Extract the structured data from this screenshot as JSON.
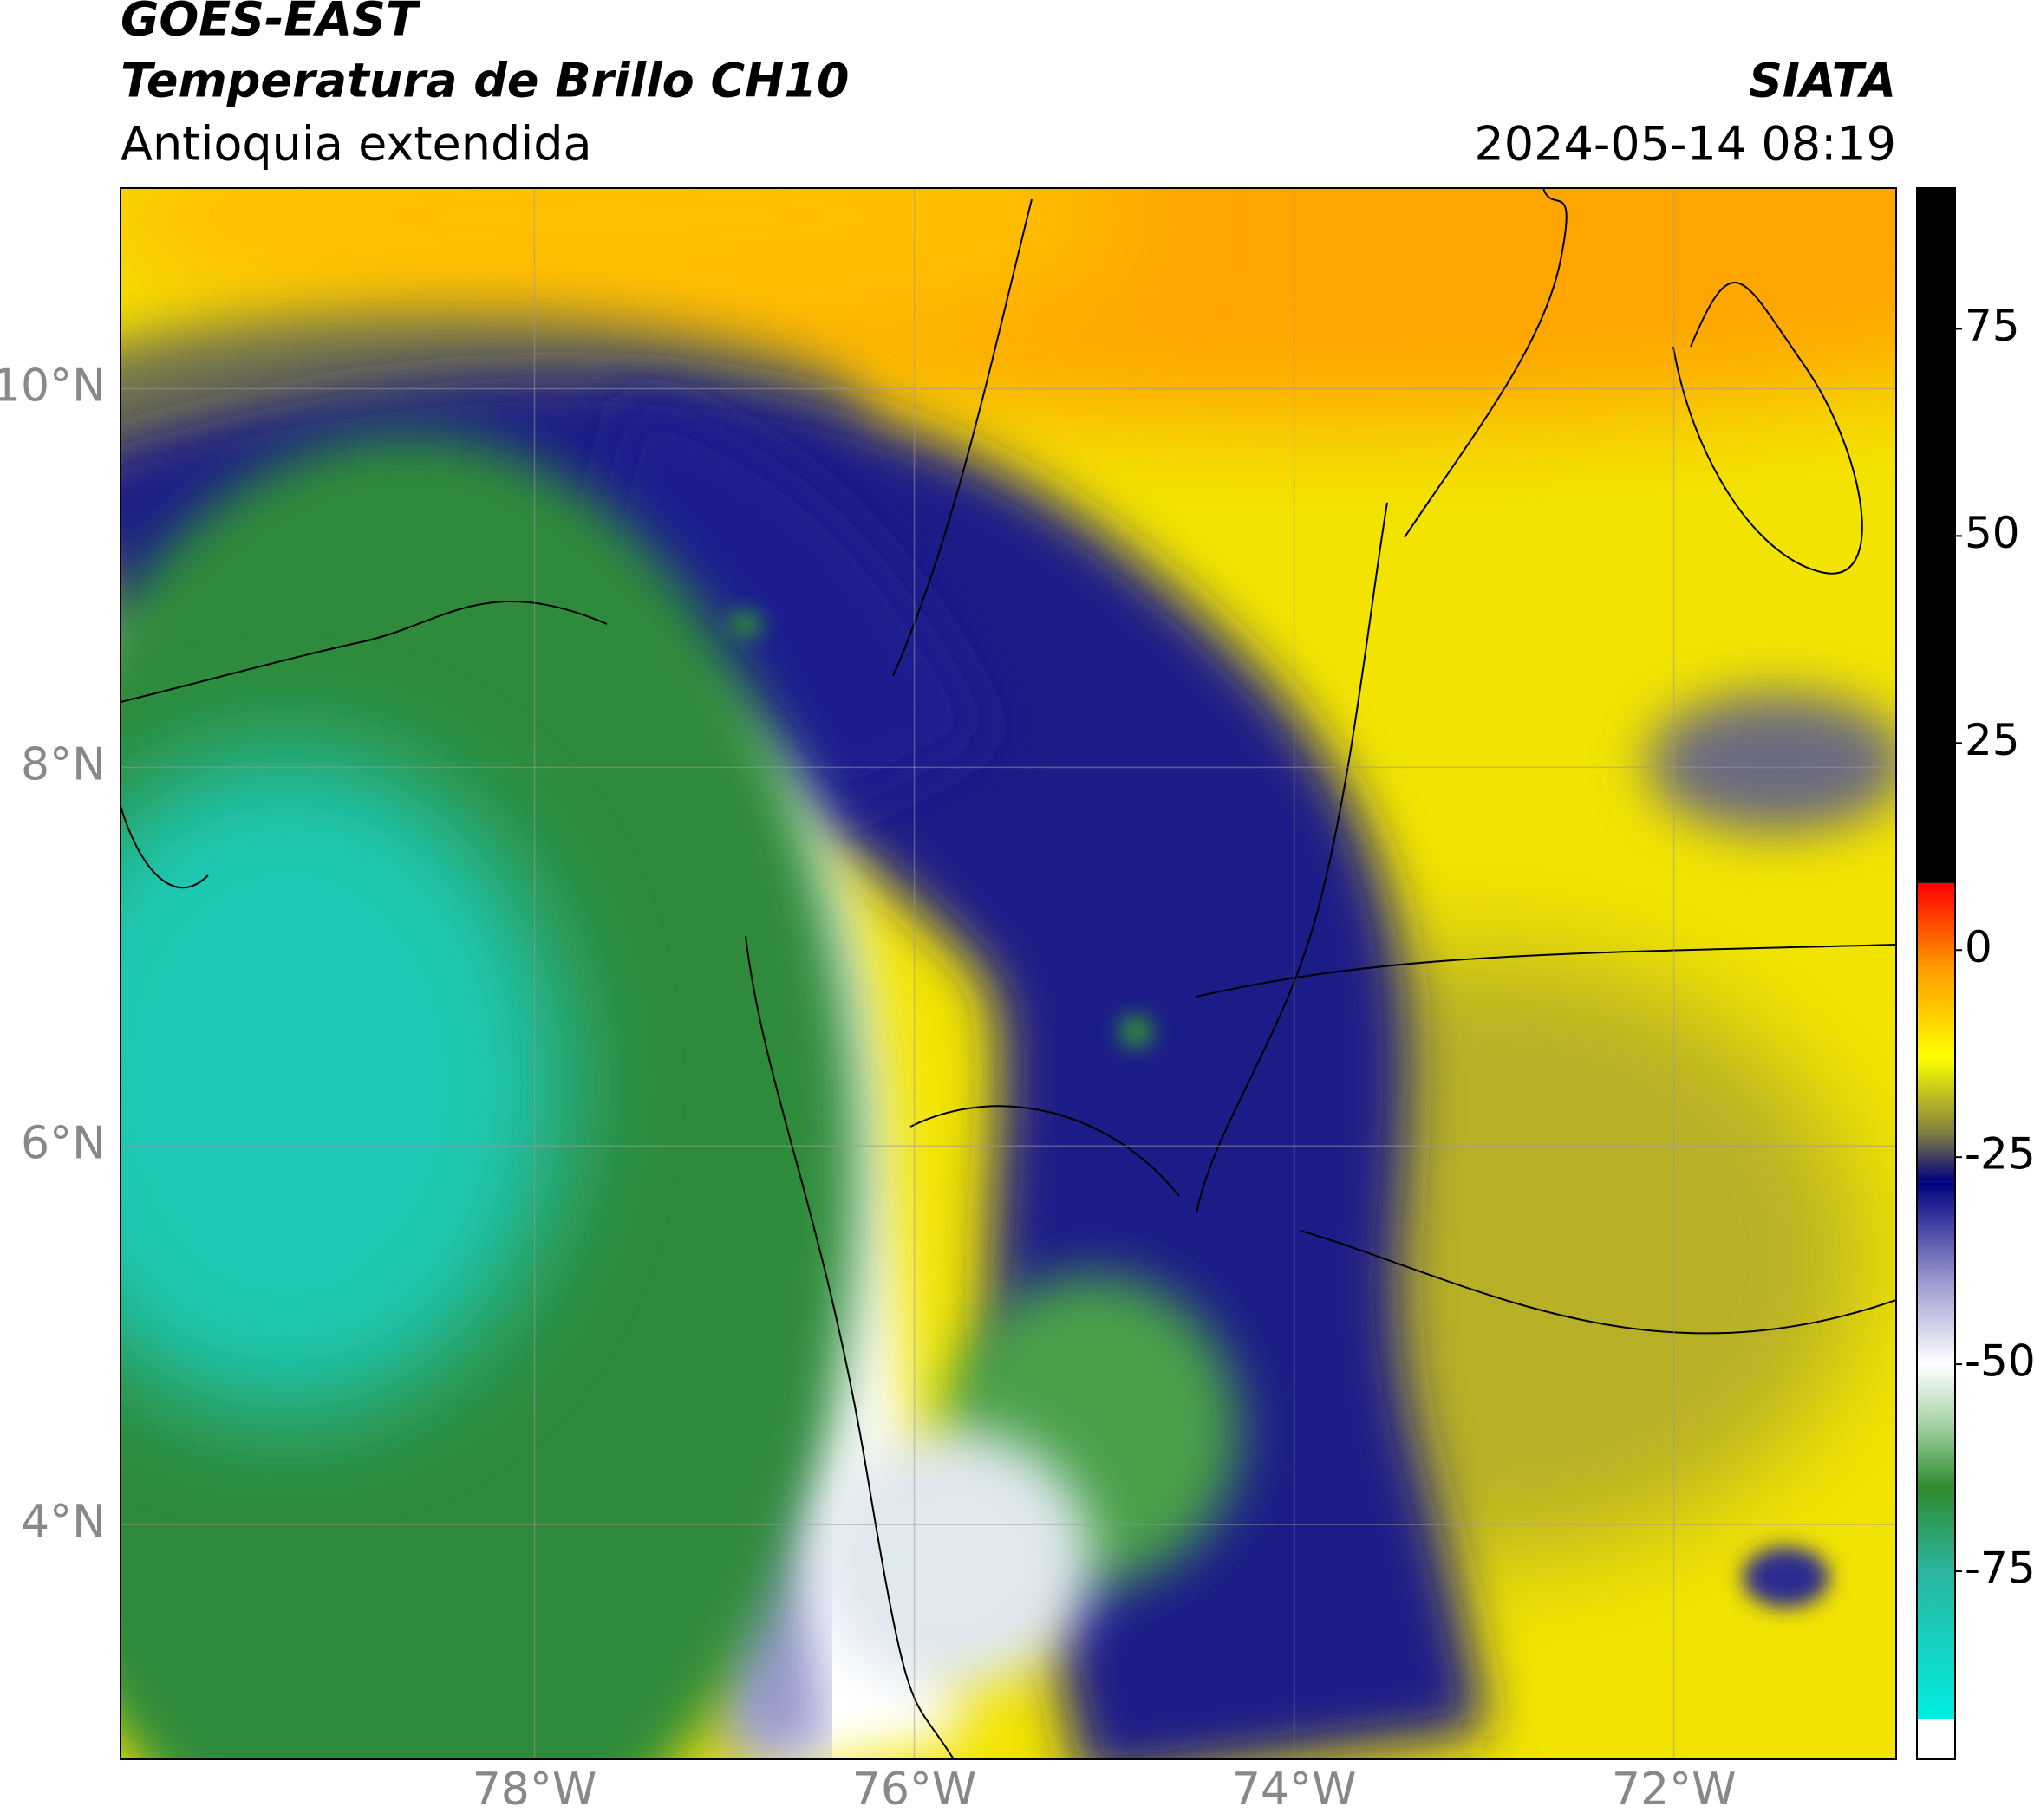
{
  "header": {
    "title_line1": "GOES-EAST",
    "title_line2": "Temperatura de Brillo CH10",
    "subtitle": "Antioquia extendida",
    "source": "SIATA",
    "timestamp": "2024-05-14 08:19"
  },
  "map": {
    "xlim": [
      -80.18,
      -70.83
    ],
    "ylim": [
      2.76,
      11.06
    ],
    "xticks": [
      {
        "value": -78,
        "label": "78°W"
      },
      {
        "value": -76,
        "label": "76°W"
      },
      {
        "value": -74,
        "label": "74°W"
      },
      {
        "value": -72,
        "label": "72°W"
      }
    ],
    "yticks": [
      {
        "value": 4,
        "label": "4°N"
      },
      {
        "value": 6,
        "label": "6°N"
      },
      {
        "value": 8,
        "label": "8°N"
      },
      {
        "value": 10,
        "label": "10°N"
      }
    ],
    "grid": true
  },
  "colorbar": {
    "lim": [
      -97.7,
      92
    ],
    "ticks": [
      -75,
      -50,
      -25,
      0,
      25,
      50,
      75
    ],
    "colormap": [
      {
        "value": -97.7,
        "color": "#ffffff"
      },
      {
        "value": -92.9,
        "color": "#ffffff"
      },
      {
        "value": -92.8,
        "color": "#00eee0"
      },
      {
        "value": -75,
        "color": "#2ab5a0"
      },
      {
        "value": -65,
        "color": "#2e8b2e"
      },
      {
        "value": -57,
        "color": "#a8d4a8"
      },
      {
        "value": -50,
        "color": "#ffffff"
      },
      {
        "value": -40,
        "color": "#9a9ad0"
      },
      {
        "value": -28,
        "color": "#000080"
      },
      {
        "value": -22,
        "color": "#808040"
      },
      {
        "value": -13,
        "color": "#ffff00"
      },
      {
        "value": -2,
        "color": "#ff9900"
      },
      {
        "value": 8,
        "color": "#ff0000"
      },
      {
        "value": 8.1,
        "color": "#000000"
      },
      {
        "value": 92,
        "color": "#000000"
      }
    ]
  }
}
